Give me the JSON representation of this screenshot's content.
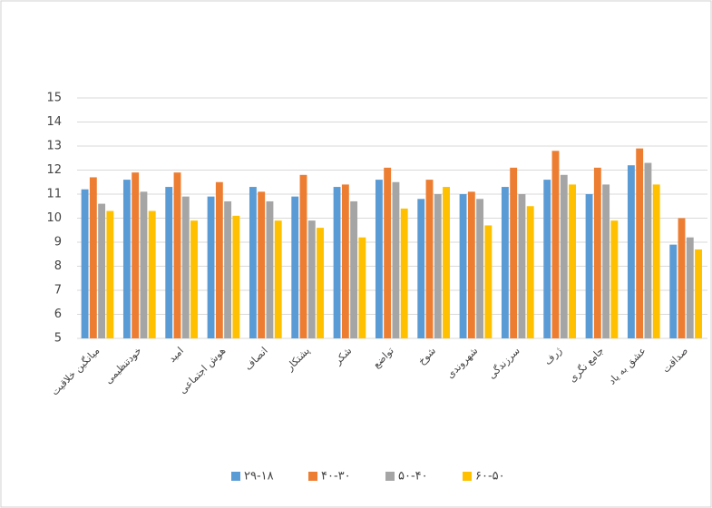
{
  "chart_data": {
    "type": "bar",
    "categories": [
      "میانگین خلاقیت",
      "خودتنظیمی",
      "امید",
      "هوش اجتماعی",
      "انصاف",
      "پشتکار",
      "شکر",
      "تواضع",
      "شوخ",
      "شهروندی",
      "سرزندگی",
      "ژرف",
      "جامع نگری",
      "عشق به یاد",
      "صداقت"
    ],
    "series": [
      {
        "name": "۲۹-۱۸",
        "color": "#5b9bd5",
        "values": [
          11.2,
          11.6,
          11.3,
          10.9,
          11.3,
          10.9,
          11.3,
          11.6,
          10.8,
          11.0,
          11.3,
          11.6,
          11.0,
          12.2,
          8.9
        ]
      },
      {
        "name": "۴۰-۳۰",
        "color": "#ed7d31",
        "values": [
          11.7,
          11.9,
          11.9,
          11.5,
          11.1,
          11.8,
          11.4,
          12.1,
          11.6,
          11.1,
          12.1,
          12.8,
          12.1,
          12.9,
          10.0
        ]
      },
      {
        "name": "۵۰-۴۰",
        "color": "#a5a5a5",
        "values": [
          10.6,
          11.1,
          10.9,
          10.7,
          10.7,
          9.9,
          10.7,
          11.5,
          11.0,
          10.8,
          11.0,
          11.8,
          11.4,
          12.3,
          9.2
        ]
      },
      {
        "name": "۶۰-۵۰",
        "color": "#ffc000",
        "values": [
          10.3,
          10.3,
          9.9,
          10.1,
          9.9,
          9.6,
          9.2,
          10.4,
          11.3,
          9.7,
          10.5,
          11.4,
          9.9,
          11.4,
          8.7
        ]
      }
    ],
    "ylim": [
      5,
      15
    ],
    "yticks": [
      5,
      6,
      7,
      8,
      9,
      10,
      11,
      12,
      13,
      14,
      15
    ],
    "grid": true,
    "legend": "bottom"
  }
}
